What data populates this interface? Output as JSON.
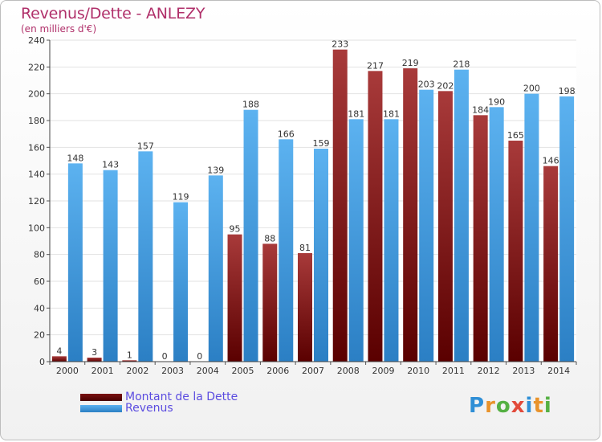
{
  "title": "Revenus/Dette - ANLEZY",
  "subtitle": "(en milliers d'€)",
  "chart_data": {
    "type": "bar",
    "categories": [
      "2000",
      "2001",
      "2002",
      "2003",
      "2004",
      "2005",
      "2006",
      "2007",
      "2008",
      "2009",
      "2010",
      "2011",
      "2012",
      "2013",
      "2014"
    ],
    "series": [
      {
        "name": "Montant de la Dette",
        "color": "#8b1a1a",
        "values": [
          4,
          3,
          1,
          0,
          0,
          95,
          88,
          81,
          233,
          217,
          219,
          202,
          184,
          165,
          146
        ]
      },
      {
        "name": "Revenus",
        "color": "#4aa3e8",
        "values": [
          148,
          143,
          157,
          119,
          139,
          188,
          166,
          159,
          181,
          181,
          203,
          218,
          190,
          200,
          198
        ]
      }
    ],
    "yticks": [
      0,
      20,
      40,
      60,
      80,
      100,
      120,
      140,
      160,
      180,
      200,
      220,
      240
    ],
    "ylim": [
      0,
      240
    ],
    "grid": true,
    "legend_position": "bottom-left"
  },
  "legend": {
    "items": [
      "Montant de la Dette",
      "Revenus"
    ]
  },
  "logo": {
    "letters": [
      "P",
      "r",
      "o",
      "x",
      "i",
      "t",
      "i"
    ]
  }
}
